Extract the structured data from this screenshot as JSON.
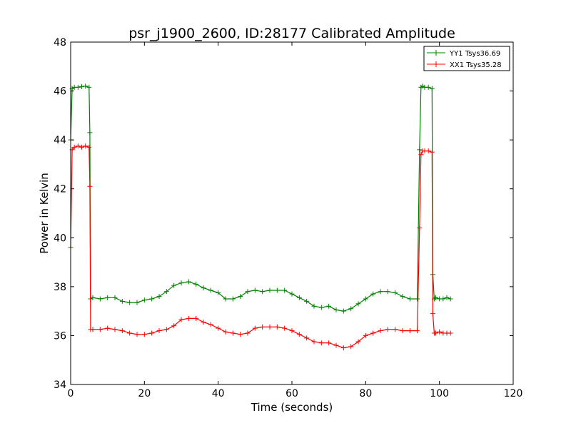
{
  "chart_data": {
    "type": "line",
    "title": "psr_j1900_2600, ID:28177 Calibrated Amplitude",
    "xlabel": "Time (seconds)",
    "ylabel": "Power in Kelvin",
    "xlim": [
      0,
      120
    ],
    "ylim": [
      34,
      48
    ],
    "xticks": [
      "0",
      "20",
      "40",
      "60",
      "80",
      "100",
      "120"
    ],
    "yticks": [
      "34",
      "36",
      "38",
      "40",
      "42",
      "44",
      "46",
      "48"
    ],
    "grid": false,
    "legend_position": "top-right",
    "series": [
      {
        "name": "YY1 Tsys36.69",
        "color": "#008000",
        "marker": "+",
        "x": [
          0,
          0.4,
          1,
          2,
          3,
          4,
          5,
          5.2,
          5.4,
          6,
          8,
          10,
          12,
          14,
          16,
          18,
          20,
          22,
          24,
          26,
          28,
          30,
          32,
          34,
          36,
          38,
          40,
          42,
          44,
          46,
          48,
          50,
          52,
          54,
          56,
          58,
          60,
          62,
          64,
          66,
          68,
          70,
          72,
          74,
          76,
          78,
          80,
          82,
          84,
          86,
          88,
          90,
          92,
          94,
          94.6,
          95,
          95.4,
          96,
          97,
          98,
          98.2,
          98.6,
          99,
          100,
          101,
          102,
          103
        ],
        "values": [
          44.0,
          46.1,
          46.15,
          46.15,
          46.18,
          46.2,
          46.15,
          44.3,
          37.5,
          37.55,
          37.5,
          37.55,
          37.55,
          37.4,
          37.35,
          37.35,
          37.45,
          37.5,
          37.6,
          37.8,
          38.05,
          38.15,
          38.2,
          38.1,
          37.95,
          37.85,
          37.75,
          37.5,
          37.5,
          37.6,
          37.8,
          37.85,
          37.8,
          37.85,
          37.85,
          37.85,
          37.7,
          37.55,
          37.4,
          37.2,
          37.15,
          37.2,
          37.05,
          37.0,
          37.1,
          37.3,
          37.5,
          37.7,
          37.8,
          37.8,
          37.75,
          37.6,
          37.5,
          37.5,
          43.6,
          46.15,
          46.2,
          46.15,
          46.15,
          46.1,
          38.5,
          37.5,
          37.55,
          37.5,
          37.5,
          37.55,
          37.5
        ]
      },
      {
        "name": "XX1 Tsys35.28",
        "color": "#ff0000",
        "marker": "+",
        "x": [
          0,
          0.4,
          1,
          2,
          3,
          4,
          5,
          5.2,
          5.4,
          6,
          8,
          10,
          12,
          14,
          16,
          18,
          20,
          22,
          24,
          26,
          28,
          30,
          32,
          34,
          36,
          38,
          40,
          42,
          44,
          46,
          48,
          50,
          52,
          54,
          56,
          58,
          60,
          62,
          64,
          66,
          68,
          70,
          72,
          74,
          76,
          78,
          80,
          82,
          84,
          86,
          88,
          90,
          92,
          94,
          94.6,
          95,
          95.4,
          96,
          97,
          98,
          98.2,
          98.6,
          99,
          100,
          101,
          102,
          103
        ],
        "values": [
          39.6,
          43.6,
          43.7,
          43.75,
          43.7,
          43.75,
          43.7,
          42.1,
          36.25,
          36.25,
          36.25,
          36.3,
          36.25,
          36.2,
          36.1,
          36.05,
          36.05,
          36.1,
          36.2,
          36.25,
          36.4,
          36.65,
          36.7,
          36.7,
          36.55,
          36.45,
          36.3,
          36.15,
          36.1,
          36.05,
          36.1,
          36.3,
          36.35,
          36.35,
          36.35,
          36.3,
          36.2,
          36.05,
          35.9,
          35.75,
          35.7,
          35.7,
          35.6,
          35.5,
          35.55,
          35.75,
          36.0,
          36.1,
          36.2,
          36.25,
          36.25,
          36.2,
          36.2,
          36.2,
          40.4,
          43.4,
          43.55,
          43.55,
          43.55,
          43.5,
          36.9,
          36.1,
          36.1,
          36.15,
          36.1,
          36.1,
          36.1
        ]
      }
    ]
  }
}
